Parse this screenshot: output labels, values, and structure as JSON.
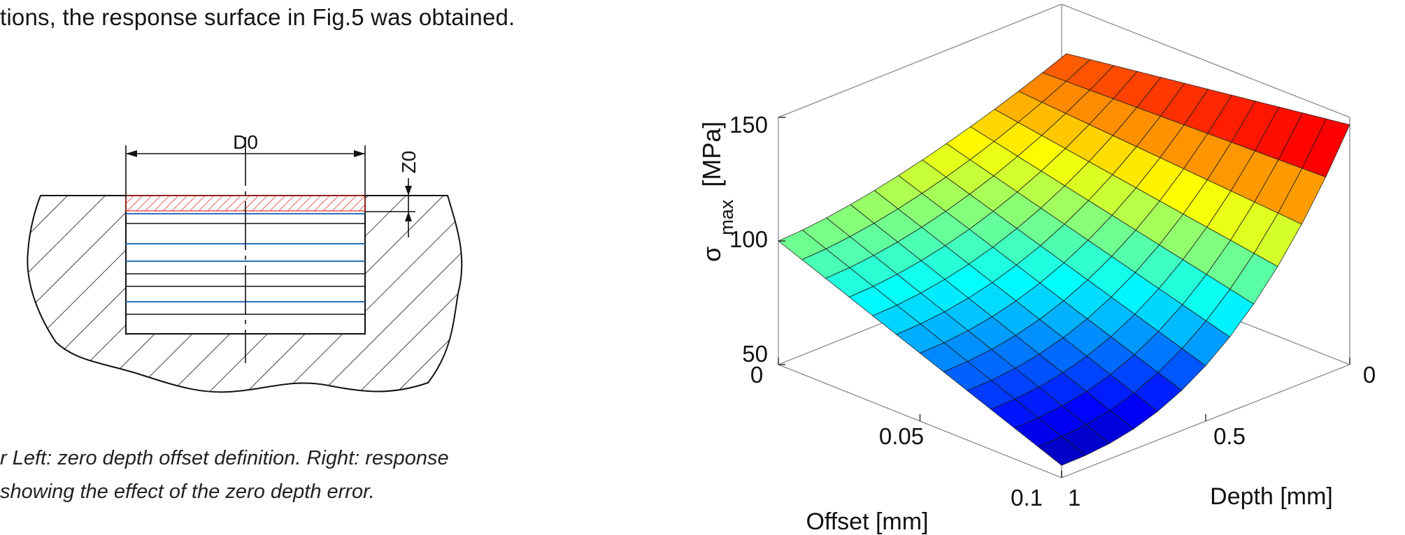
{
  "paper": {
    "body_text": "tions, the response surface in Fig.5 was obtained.",
    "caption_line1": "r Left: zero depth offset definition. Right: response",
    "caption_line2": "showing the effect of the zero depth error."
  },
  "left_figure": {
    "dimension_diameter": "D0",
    "dimension_depth": "Z0",
    "colors": {
      "offset_hatch": "#e03020",
      "layer_lines": "#2a6fb8",
      "outline": "#111111"
    }
  },
  "chart_data": {
    "type": "surface3d",
    "title": "",
    "xlabel": "Offset [mm]",
    "ylabel": "Depth [mm]",
    "zlabel": "σ max [MPa]",
    "zlabel_symbol": "σ",
    "zlabel_sub": "max",
    "zlabel_unit": "[MPa]",
    "x_ticks": [
      "0",
      "0.05",
      "0.1"
    ],
    "y_ticks": [
      "0",
      "0.5",
      "1"
    ],
    "z_ticks": [
      "50",
      "100",
      "150"
    ],
    "xlim": [
      0,
      0.1
    ],
    "ylim": [
      0,
      1
    ],
    "zlim": [
      50,
      150
    ],
    "grid": true,
    "colormap": "jet",
    "corners": [
      {
        "offset": 0,
        "depth": 1,
        "sigma_max": 100
      },
      {
        "offset": 0,
        "depth": 0,
        "sigma_max": 130
      },
      {
        "offset": 0.1,
        "depth": 0,
        "sigma_max": 147
      },
      {
        "offset": 0.1,
        "depth": 1,
        "sigma_max": 55
      }
    ]
  }
}
